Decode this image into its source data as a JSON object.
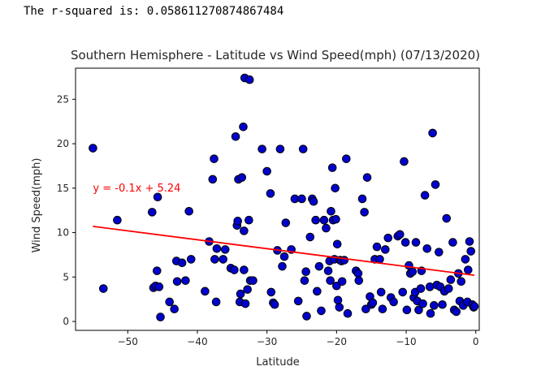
{
  "output": {
    "line": "The r-squared is: 0.058611270874867484"
  },
  "chart_data": {
    "type": "scatter",
    "title": "Southern Hemisphere - Latitude vs Wind Speed(mph) (07/13/2020)",
    "xlabel": "Latitude",
    "ylabel": "Wind Speed(mph)",
    "xlim": [
      -57.5,
      0.5
    ],
    "ylim": [
      -1,
      28.5
    ],
    "xticks": [
      -50,
      -40,
      -30,
      -20,
      -10,
      0
    ],
    "yticks": [
      0,
      5,
      10,
      15,
      20,
      25
    ],
    "xtick_labels": [
      "−50",
      "−40",
      "−30",
      "−20",
      "−10",
      "0"
    ],
    "ytick_labels": [
      "0",
      "5",
      "10",
      "15",
      "20",
      "25"
    ],
    "grid": false,
    "marker_fill": "#0000cd",
    "marker_edge": "#000000",
    "regression": {
      "equation": "y = -0.1x + 5.24",
      "color": "#ff0000",
      "x_range": [
        -55,
        -0.2
      ],
      "y_range": [
        10.7,
        5.2
      ],
      "label_x": -55,
      "label_y": 15
    },
    "points": [
      [
        -55,
        19.5
      ],
      [
        -53.5,
        3.7
      ],
      [
        -51.5,
        11.4
      ],
      [
        -46.5,
        12.3
      ],
      [
        -46.3,
        3.8
      ],
      [
        -46,
        4
      ],
      [
        -45.8,
        5.7
      ],
      [
        -45.7,
        14
      ],
      [
        -45.5,
        3.9
      ],
      [
        -45.3,
        0.5
      ],
      [
        -44,
        2.2
      ],
      [
        -43.3,
        1.4
      ],
      [
        -43,
        6.8
      ],
      [
        -42.9,
        4.5
      ],
      [
        -42.2,
        6.6
      ],
      [
        -41.7,
        4.6
      ],
      [
        -41.2,
        12.4
      ],
      [
        -40.9,
        7
      ],
      [
        -38.9,
        3.4
      ],
      [
        -38.3,
        9
      ],
      [
        -37.8,
        16
      ],
      [
        -37.6,
        18.3
      ],
      [
        -37.5,
        7
      ],
      [
        -37.3,
        2.2
      ],
      [
        -37.2,
        8.2
      ],
      [
        -36.3,
        7
      ],
      [
        -36,
        8.1
      ],
      [
        -35.2,
        6
      ],
      [
        -34.7,
        5.8
      ],
      [
        -34.5,
        20.8
      ],
      [
        -34.3,
        10.8
      ],
      [
        -34.2,
        11.3
      ],
      [
        -34.1,
        16
      ],
      [
        -33.9,
        2.2
      ],
      [
        -33.8,
        3.1
      ],
      [
        -33.6,
        16.2
      ],
      [
        -33.4,
        21.9
      ],
      [
        -33.3,
        10.2
      ],
      [
        -33.3,
        5.8
      ],
      [
        -33.2,
        27.4
      ],
      [
        -33.1,
        2
      ],
      [
        -32.8,
        3.6
      ],
      [
        -32.6,
        11.4
      ],
      [
        -32.4,
        4.6
      ],
      [
        -32.5,
        27.2
      ],
      [
        -32,
        4.6
      ],
      [
        -30.7,
        19.4
      ],
      [
        -30,
        16.9
      ],
      [
        -29.5,
        14.4
      ],
      [
        -29.4,
        3.3
      ],
      [
        -29.1,
        2.1
      ],
      [
        -28.9,
        1.9
      ],
      [
        -28.5,
        8
      ],
      [
        -28.1,
        19.4
      ],
      [
        -27.8,
        6.2
      ],
      [
        -27.5,
        7.3
      ],
      [
        -27.3,
        11.1
      ],
      [
        -26.5,
        8.1
      ],
      [
        -26,
        13.8
      ],
      [
        -25.5,
        2.3
      ],
      [
        -25,
        13.8
      ],
      [
        -24.8,
        19.4
      ],
      [
        -24.6,
        4.6
      ],
      [
        -24.4,
        5.6
      ],
      [
        -24.3,
        0.6
      ],
      [
        -23.8,
        9.5
      ],
      [
        -23.5,
        13.8
      ],
      [
        -23.3,
        13.5
      ],
      [
        -23,
        11.4
      ],
      [
        -22.8,
        3.4
      ],
      [
        -22.5,
        6.2
      ],
      [
        -22.2,
        1.2
      ],
      [
        -21.8,
        11.4
      ],
      [
        -21.5,
        10.5
      ],
      [
        -21.2,
        5.7
      ],
      [
        -21,
        6.8
      ],
      [
        -20.9,
        4.6
      ],
      [
        -20.8,
        12.4
      ],
      [
        -20.6,
        17.3
      ],
      [
        -20.5,
        11.4
      ],
      [
        -20.3,
        7
      ],
      [
        -20.2,
        15
      ],
      [
        -20.1,
        11.5
      ],
      [
        -20,
        4
      ],
      [
        -19.9,
        8.7
      ],
      [
        -19.8,
        2.4
      ],
      [
        -19.6,
        1.6
      ],
      [
        -19.5,
        6.9
      ],
      [
        -19.3,
        6.8
      ],
      [
        -19.2,
        4.5
      ],
      [
        -18.9,
        6.9
      ],
      [
        -18.6,
        18.3
      ],
      [
        -18.4,
        0.9
      ],
      [
        -17.2,
        5.7
      ],
      [
        -16.9,
        5.4
      ],
      [
        -16.8,
        4.6
      ],
      [
        -16.3,
        13.8
      ],
      [
        -16,
        12.3
      ],
      [
        -15.8,
        1.4
      ],
      [
        -15.6,
        16.2
      ],
      [
        -15.2,
        2.8
      ],
      [
        -15,
        1.9
      ],
      [
        -14.8,
        2.1
      ],
      [
        -14.5,
        7
      ],
      [
        -14.2,
        8.4
      ],
      [
        -13.8,
        7
      ],
      [
        -13.6,
        3.3
      ],
      [
        -13.4,
        1.4
      ],
      [
        -13,
        8.1
      ],
      [
        -12.6,
        9.4
      ],
      [
        -12.2,
        2.7
      ],
      [
        -11.8,
        2.2
      ],
      [
        -11.2,
        9.6
      ],
      [
        -10.9,
        9.8
      ],
      [
        -10.5,
        3.3
      ],
      [
        -10.3,
        18
      ],
      [
        -10.1,
        8.9
      ],
      [
        -9.9,
        1.3
      ],
      [
        -9.6,
        6.3
      ],
      [
        -9.4,
        5.4
      ],
      [
        -9.1,
        5.6
      ],
      [
        -8.9,
        2.7
      ],
      [
        -8.7,
        3.3
      ],
      [
        -8.6,
        8.9
      ],
      [
        -8.4,
        2.3
      ],
      [
        -8.2,
        1.3
      ],
      [
        -7.9,
        3.7
      ],
      [
        -7.8,
        5.7
      ],
      [
        -7.6,
        2
      ],
      [
        -7.3,
        14.2
      ],
      [
        -7,
        8.2
      ],
      [
        -6.6,
        3.9
      ],
      [
        -6.5,
        0.9
      ],
      [
        -6.2,
        21.2
      ],
      [
        -6,
        1.8
      ],
      [
        -5.8,
        15.4
      ],
      [
        -5.6,
        4.1
      ],
      [
        -5.3,
        7.8
      ],
      [
        -5.1,
        3.9
      ],
      [
        -4.8,
        1.9
      ],
      [
        -4.5,
        3.4
      ],
      [
        -4.2,
        11.6
      ],
      [
        -3.9,
        3.7
      ],
      [
        -3.6,
        4.7
      ],
      [
        -3.3,
        8.9
      ],
      [
        -3.1,
        1.3
      ],
      [
        -2.8,
        1.1
      ],
      [
        -2.5,
        5.4
      ],
      [
        -2.3,
        2.3
      ],
      [
        -2.1,
        4.5
      ],
      [
        -1.8,
        1.8
      ],
      [
        -1.5,
        7
      ],
      [
        -1.2,
        2.2
      ],
      [
        -1.1,
        5.8
      ],
      [
        -0.9,
        9
      ],
      [
        -0.7,
        7.9
      ],
      [
        -0.5,
        1.9
      ],
      [
        -0.3,
        1.6
      ],
      [
        -0.2,
        1.7
      ]
    ]
  }
}
